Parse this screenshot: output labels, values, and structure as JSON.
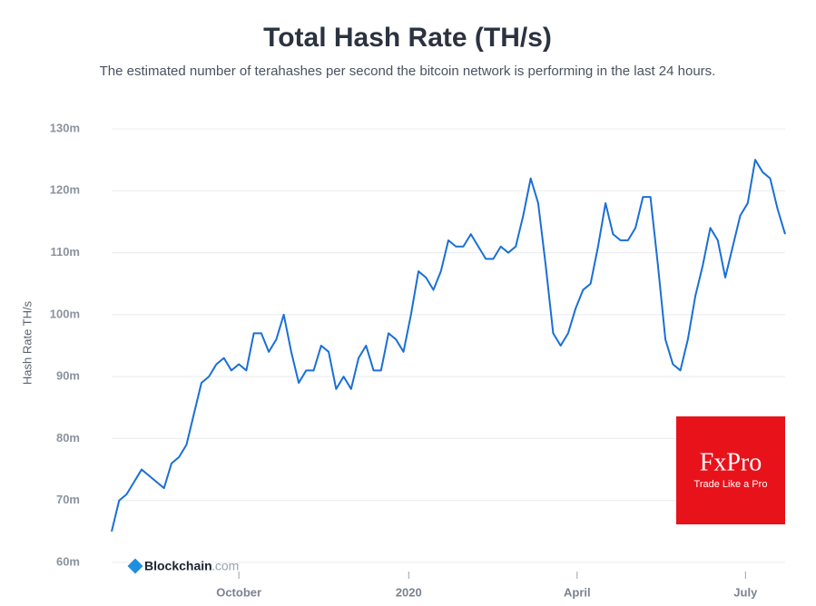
{
  "chart_data": {
    "type": "line",
    "title": "Total Hash Rate (TH/s)",
    "subtitle": "The estimated number of terahashes per second the bitcoin network is performing in the last 24 hours.",
    "y_label": "Hash Rate TH/s",
    "logo": [
      "Blockchain",
      ".com"
    ],
    "badge": {
      "brand": "FxPro",
      "tagline": "Trade Like a Pro"
    },
    "color": "#1a6fd6",
    "grid": true,
    "values": [
      65,
      70,
      71,
      73,
      75,
      74,
      73,
      72,
      76,
      77,
      79,
      84,
      89,
      90,
      92,
      93,
      91,
      92,
      91,
      97,
      97,
      94,
      96,
      100,
      94,
      89,
      91,
      91,
      95,
      94,
      88,
      90,
      88,
      93,
      95,
      91,
      91,
      97,
      96,
      94,
      100,
      107,
      106,
      104,
      107,
      112,
      111,
      111,
      113,
      111,
      109,
      109,
      111,
      110,
      111,
      116,
      122,
      118,
      108,
      97,
      95,
      97,
      101,
      104,
      105,
      111,
      118,
      113,
      112,
      112,
      114,
      119,
      119,
      108,
      96,
      92,
      91,
      96,
      103,
      108,
      114,
      112,
      106,
      111,
      116,
      118,
      125,
      123,
      122,
      117,
      113
    ],
    "xlim": [
      0,
      90
    ],
    "xticks": [
      {
        "value": 17,
        "label": "October"
      },
      {
        "value": 39.7,
        "label": "2020"
      },
      {
        "value": 62.2,
        "label": "April"
      },
      {
        "value": 84.7,
        "label": "July"
      }
    ],
    "ylim": [
      60,
      130
    ],
    "yticks": [
      {
        "value": 60,
        "label": "60m"
      },
      {
        "value": 70,
        "label": "70m"
      },
      {
        "value": 80,
        "label": "80m"
      },
      {
        "value": 90,
        "label": "90m"
      },
      {
        "value": 100,
        "label": "100m"
      },
      {
        "value": 110,
        "label": "110m"
      },
      {
        "value": 120,
        "label": "120m"
      },
      {
        "value": 130,
        "label": "130m"
      }
    ]
  }
}
